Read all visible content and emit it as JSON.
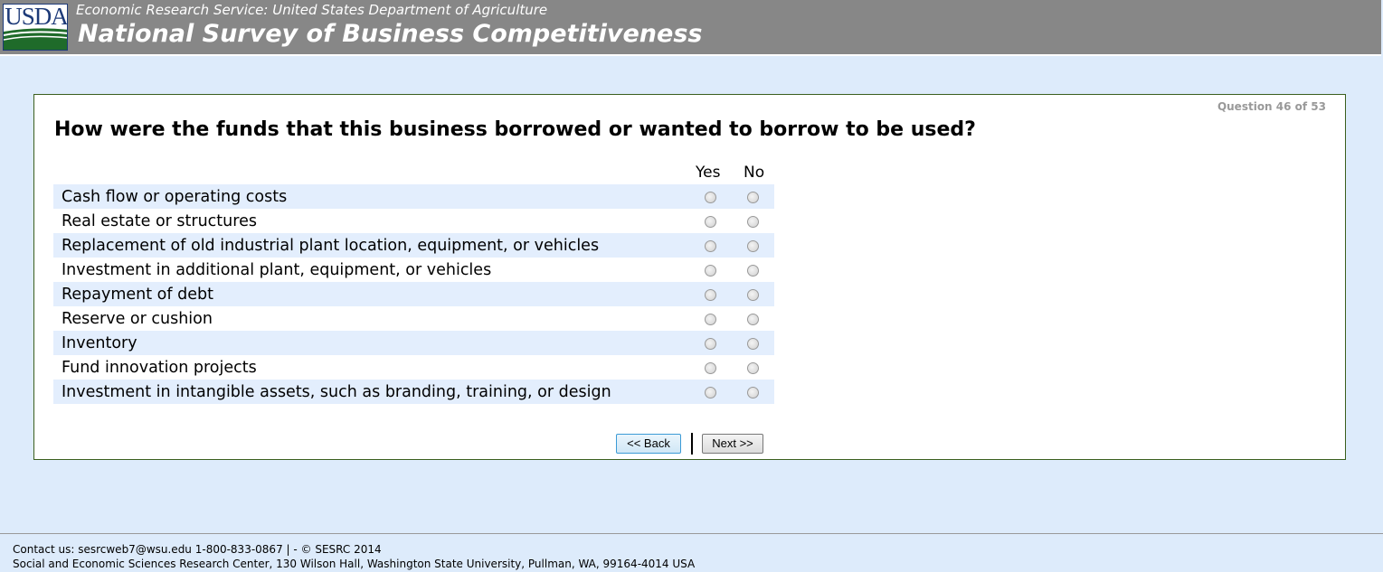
{
  "header": {
    "logo_text": "USDA",
    "subtitle": "Economic Research Service: United States Department of Agriculture",
    "title": "National Survey of Business Competitiveness"
  },
  "question": {
    "progress": "Question 46 of 53",
    "text": "How were the funds that this business borrowed or wanted to borrow to be used?",
    "columns": [
      "Yes",
      "No"
    ],
    "items": [
      {
        "label": "Cash flow or operating costs",
        "selected": null
      },
      {
        "label": "Real estate or structures",
        "selected": null
      },
      {
        "label": "Replacement of old industrial plant location, equipment, or vehicles",
        "selected": null
      },
      {
        "label": "Investment in additional plant, equipment, or vehicles",
        "selected": null
      },
      {
        "label": "Repayment of debt",
        "selected": null
      },
      {
        "label": "Reserve or cushion",
        "selected": null
      },
      {
        "label": "Inventory",
        "selected": null
      },
      {
        "label": "Fund innovation projects",
        "selected": null
      },
      {
        "label": "Investment in intangible assets, such as branding, training, or design",
        "selected": null
      }
    ]
  },
  "nav": {
    "back_label": "<< Back",
    "next_label": "Next >>"
  },
  "footer": {
    "line1": "Contact us: sesrcweb7@wsu.edu 1-800-833-0867 | - © SESRC 2014",
    "line2": "Social and Economic Sciences Research Center, 130 Wilson Hall, Washington State University, Pullman, WA, 99164-4014 USA"
  }
}
